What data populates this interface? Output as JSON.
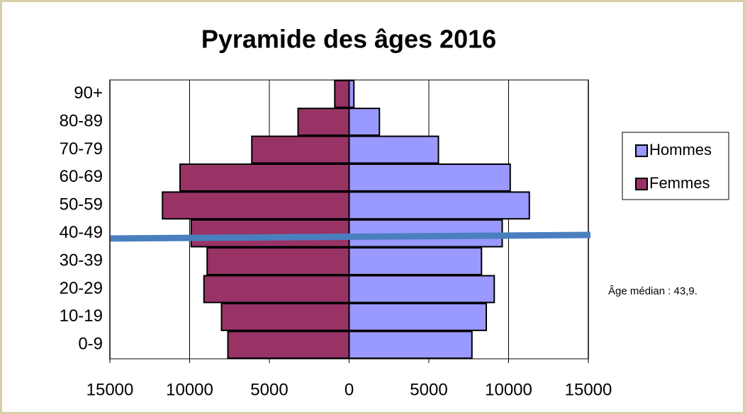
{
  "chart_data": {
    "type": "bar",
    "orientation": "horizontal",
    "stacked": true,
    "title": "Pyramide des âges 2016",
    "categories": [
      "0-9",
      "10-19",
      "20-29",
      "30-39",
      "40-49",
      "50-59",
      "60-69",
      "70-79",
      "80-89",
      "90+"
    ],
    "series": [
      {
        "name": "Hommes",
        "color": "#9999ff",
        "values": [
          7700,
          8600,
          9100,
          8300,
          9600,
          11300,
          10100,
          5600,
          1900,
          300
        ]
      },
      {
        "name": "Femmes",
        "color": "#993366",
        "values": [
          -7600,
          -8000,
          -9100,
          -8900,
          -9900,
          -11700,
          -10600,
          -6100,
          -3200,
          -900
        ]
      }
    ],
    "xlim": [
      -15000,
      15000
    ],
    "xticks": [
      {
        "value": -15000,
        "label": "15000"
      },
      {
        "value": -10000,
        "label": "10000"
      },
      {
        "value": -5000,
        "label": "5000"
      },
      0,
      5000,
      10000,
      15000
    ],
    "grid": true,
    "legend": "right",
    "annotation": "Âge médian : 43,9."
  }
}
